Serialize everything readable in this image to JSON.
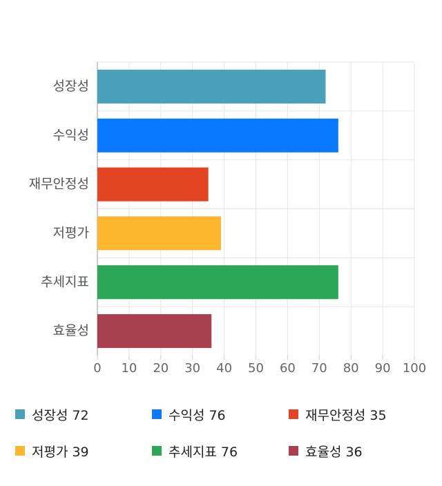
{
  "chart_data": {
    "type": "bar",
    "orientation": "horizontal",
    "categories": [
      "성장성",
      "수익성",
      "재무안정성",
      "저평가",
      "추세지표",
      "효율성"
    ],
    "values": [
      72,
      76,
      35,
      39,
      76,
      36
    ],
    "colors": [
      "#4aa0b8",
      "#0a78ff",
      "#e34522",
      "#fdb72f",
      "#2aa757",
      "#a8404f"
    ],
    "xlim": [
      0,
      100
    ],
    "xticks": [
      0,
      10,
      20,
      30,
      40,
      50,
      60,
      70,
      80,
      90,
      100
    ],
    "grid": true
  }
}
